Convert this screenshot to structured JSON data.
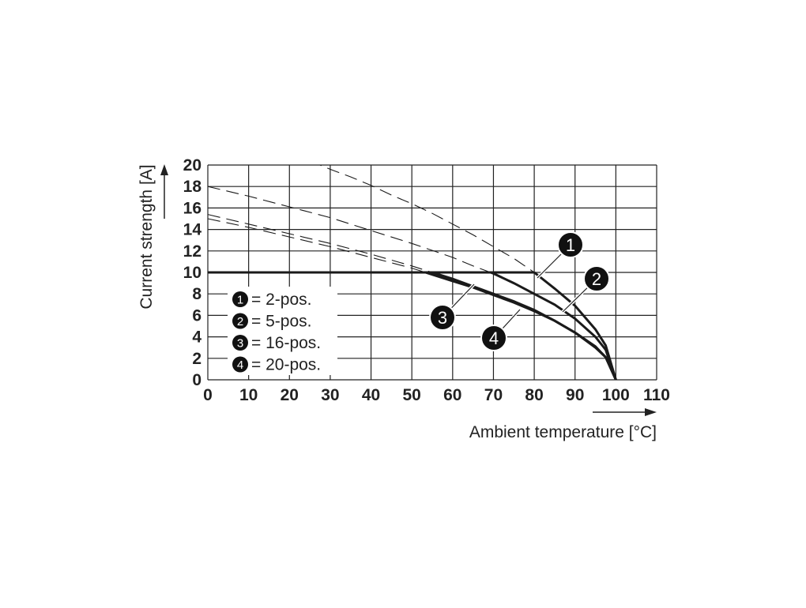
{
  "chart_data": {
    "type": "line",
    "title": "",
    "xlabel": "Ambient temperature [°C]",
    "ylabel": "Current strength [A]",
    "xlim": [
      0,
      110
    ],
    "ylim": [
      0,
      20
    ],
    "xticks": [
      0,
      10,
      20,
      30,
      40,
      50,
      60,
      70,
      80,
      90,
      100,
      110
    ],
    "yticks": [
      0,
      2,
      4,
      6,
      8,
      10,
      12,
      14,
      16,
      18,
      20
    ],
    "grid": true,
    "current_limit": 10,
    "legend_placement": "bottom-left",
    "legend": [
      {
        "marker": "1",
        "label": "= 2-pos."
      },
      {
        "marker": "2",
        "label": "= 5-pos."
      },
      {
        "marker": "3",
        "label": "= 16-pos."
      },
      {
        "marker": "4",
        "label": "= 20-pos."
      }
    ],
    "series": [
      {
        "name": "2-pos.",
        "marker": "1",
        "x": [
          25,
          30,
          35,
          40,
          45,
          50,
          55,
          60,
          65,
          70,
          75,
          80,
          85,
          90,
          95,
          97.5,
          100
        ],
        "y": [
          20.4,
          19.6,
          18.9,
          18.1,
          17.2,
          16.4,
          15.5,
          14.5,
          13.5,
          12.4,
          11.3,
          10.0,
          8.5,
          6.9,
          4.7,
          3.2,
          0
        ]
      },
      {
        "name": "5-pos.",
        "marker": "2",
        "x": [
          0,
          10,
          20,
          30,
          40,
          50,
          60,
          65,
          70,
          75,
          80,
          85,
          90,
          95,
          97.5,
          100
        ],
        "y": [
          18.0,
          17.1,
          16.1,
          15.1,
          13.9,
          12.7,
          11.4,
          10.6,
          9.9,
          9.0,
          8.0,
          7.0,
          5.7,
          4.0,
          2.8,
          0
        ]
      },
      {
        "name": "16-pos.",
        "marker": "3",
        "x": [
          0,
          10,
          20,
          30,
          40,
          50,
          55,
          60,
          65,
          70,
          75,
          80,
          85,
          90,
          95,
          97.5,
          100
        ],
        "y": [
          15.4,
          14.5,
          13.6,
          12.7,
          11.7,
          10.6,
          10.0,
          9.4,
          8.7,
          8.0,
          7.3,
          6.5,
          5.5,
          4.4,
          3.0,
          2.1,
          0
        ]
      },
      {
        "name": "20-pos.",
        "marker": "4",
        "x": [
          0,
          10,
          20,
          30,
          40,
          50,
          55,
          60,
          65,
          70,
          75,
          80,
          85,
          90,
          95,
          97.5,
          100
        ],
        "y": [
          15.0,
          14.2,
          13.3,
          12.4,
          11.4,
          10.4,
          9.8,
          9.2,
          8.6,
          7.9,
          7.2,
          6.4,
          5.5,
          4.4,
          3.1,
          2.1,
          0
        ]
      }
    ],
    "colors": {
      "line": "#1a1a1a",
      "grid": "#222222",
      "background": "#ffffff"
    }
  }
}
